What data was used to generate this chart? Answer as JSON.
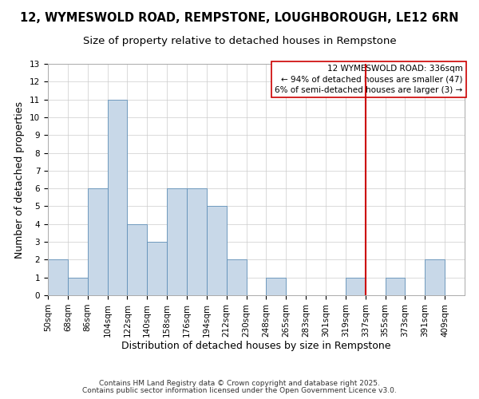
{
  "title": "12, WYMESWOLD ROAD, REMPSTONE, LOUGHBOROUGH, LE12 6RN",
  "subtitle": "Size of property relative to detached houses in Rempstone",
  "xlabel": "Distribution of detached houses by size in Rempstone",
  "ylabel": "Number of detached properties",
  "bin_labels": [
    "50sqm",
    "68sqm",
    "86sqm",
    "104sqm",
    "122sqm",
    "140sqm",
    "158sqm",
    "176sqm",
    "194sqm",
    "212sqm",
    "230sqm",
    "248sqm",
    "265sqm",
    "283sqm",
    "301sqm",
    "319sqm",
    "337sqm",
    "355sqm",
    "373sqm",
    "391sqm",
    "409sqm"
  ],
  "bar_heights": [
    2,
    1,
    6,
    11,
    4,
    3,
    6,
    6,
    5,
    2,
    0,
    1,
    0,
    0,
    0,
    1,
    0,
    1,
    0,
    2,
    0
  ],
  "bar_color": "#c8d8e8",
  "bar_edgecolor": "#6090b8",
  "grid_color": "#cccccc",
  "background_color": "#ffffff",
  "vline_color": "#cc0000",
  "vline_bin_index": 16,
  "annotation_title": "12 WYMESWOLD ROAD: 336sqm",
  "annotation_line1": "← 94% of detached houses are smaller (47)",
  "annotation_line2": "6% of semi-detached houses are larger (3) →",
  "annotation_box_color": "#ffffff",
  "annotation_box_edgecolor": "#cc0000",
  "ylim": [
    0,
    13
  ],
  "yticks": [
    0,
    1,
    2,
    3,
    4,
    5,
    6,
    7,
    8,
    9,
    10,
    11,
    12,
    13
  ],
  "footer1": "Contains HM Land Registry data © Crown copyright and database right 2025.",
  "footer2": "Contains public sector information licensed under the Open Government Licence v3.0.",
  "title_fontsize": 10.5,
  "subtitle_fontsize": 9.5,
  "label_fontsize": 9,
  "tick_fontsize": 7.5,
  "annotation_fontsize": 7.5,
  "footer_fontsize": 6.5
}
